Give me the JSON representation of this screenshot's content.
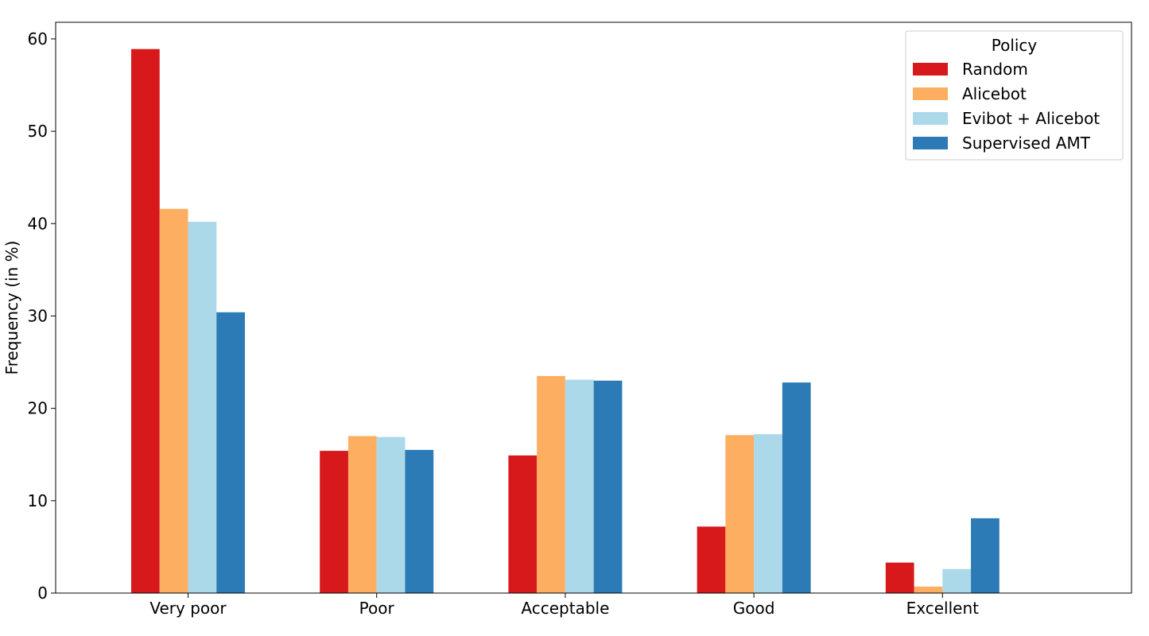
{
  "chart_data": {
    "type": "bar",
    "title": "",
    "xlabel": "",
    "ylabel": "Frequency (in %)",
    "ylim": [
      0,
      61.8
    ],
    "yticks": [
      0,
      10,
      20,
      30,
      40,
      50,
      60
    ],
    "grid": false,
    "categories": [
      "Very poor",
      "Poor",
      "Acceptable",
      "Good",
      "Excellent"
    ],
    "series": [
      {
        "name": "Random",
        "color": "#d7191c",
        "values": [
          58.9,
          15.4,
          14.9,
          7.2,
          3.3
        ]
      },
      {
        "name": "Alicebot",
        "color": "#fdae61",
        "values": [
          41.6,
          17.0,
          23.5,
          17.1,
          0.7
        ]
      },
      {
        "name": "Evibot + Alicebot",
        "color": "#abd9e9",
        "values": [
          40.2,
          16.9,
          23.1,
          17.2,
          2.6
        ]
      },
      {
        "name": "Supervised AMT",
        "color": "#2c7bb6",
        "values": [
          30.4,
          15.5,
          23.0,
          22.8,
          8.1
        ]
      }
    ],
    "legend": {
      "title": "Policy",
      "placement": "top-right"
    }
  }
}
